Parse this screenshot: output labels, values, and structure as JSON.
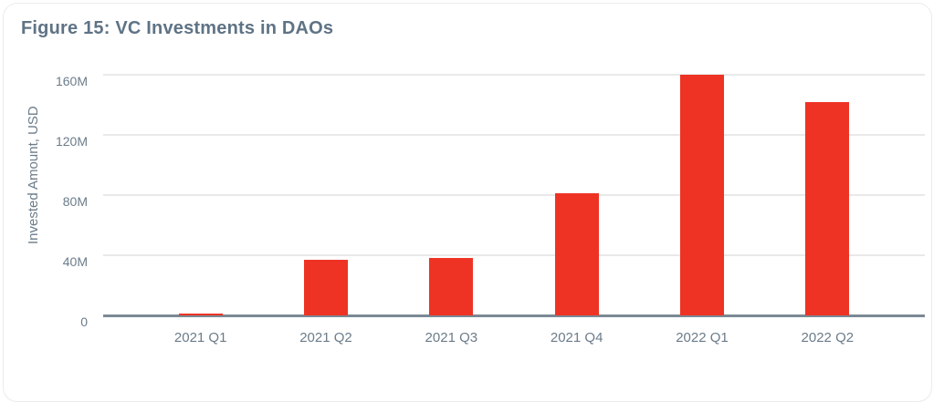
{
  "card": {
    "title": "Figure 15: VC Investments in DAOs"
  },
  "chart_data": {
    "type": "bar",
    "title": "Figure 15: VC Investments in DAOs",
    "categories": [
      "2021 Q1",
      "2021 Q2",
      "2021 Q3",
      "2021 Q4",
      "2022 Q1",
      "2022 Q2"
    ],
    "values": [
      1,
      37,
      38,
      81,
      160,
      142
    ],
    "values_unit": "M USD",
    "xlabel": "",
    "ylabel": "Invested Amount, USD",
    "ylim": [
      0,
      160
    ],
    "yticks": [
      0,
      40,
      80,
      120,
      160
    ],
    "ytick_labels": [
      "0",
      "40M",
      "80M",
      "120M",
      "160M"
    ],
    "grid": true,
    "legend": false,
    "bar_color": "#ee3324"
  },
  "colors": {
    "bar": "#ee3324",
    "title_text": "#5f7385",
    "axis_text": "#6b7c8a",
    "gridline": "#e9e9e9",
    "axis_line": "#7b8994",
    "card_border": "#ececec",
    "background": "#ffffff"
  }
}
